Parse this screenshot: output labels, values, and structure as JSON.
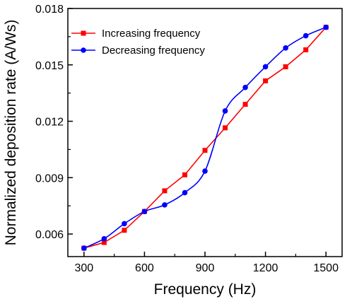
{
  "chart_data": {
    "type": "line",
    "xlabel": "Frequency  (Hz)",
    "ylabel": "Normalized deposition rate  (A/Ws)",
    "xlim": [
      220,
      1580
    ],
    "ylim": [
      0.0048,
      0.018
    ],
    "x_ticks": [
      300,
      600,
      900,
      1200,
      1500
    ],
    "x_tick_labels": [
      "300",
      "600",
      "900",
      "1200",
      "1500"
    ],
    "y_ticks": [
      0.006,
      0.009,
      0.012,
      0.015,
      0.018
    ],
    "y_tick_labels": [
      "0.006",
      "0.009",
      "0.012",
      "0.015",
      "0.018"
    ],
    "legend_position": "top-left",
    "series": [
      {
        "name": "Increasing frequency",
        "color": "#ff0000",
        "marker": "square",
        "line_style": "straight",
        "x": [
          300,
          400,
          500,
          600,
          700,
          800,
          900,
          1000,
          1100,
          1200,
          1300,
          1400,
          1500
        ],
        "y": [
          0.00525,
          0.00555,
          0.0062,
          0.0072,
          0.0083,
          0.00915,
          0.01045,
          0.01165,
          0.0129,
          0.01415,
          0.0149,
          0.0158,
          0.017
        ]
      },
      {
        "name": "Decreasing frequency",
        "color": "#0000ff",
        "marker": "circle",
        "line_style": "smooth",
        "x": [
          300,
          400,
          500,
          600,
          700,
          800,
          900,
          1000,
          1100,
          1200,
          1300,
          1400,
          1500
        ],
        "y": [
          0.00525,
          0.00575,
          0.00655,
          0.0072,
          0.00755,
          0.0082,
          0.00935,
          0.01255,
          0.0138,
          0.0149,
          0.0159,
          0.01655,
          0.017
        ]
      }
    ]
  }
}
